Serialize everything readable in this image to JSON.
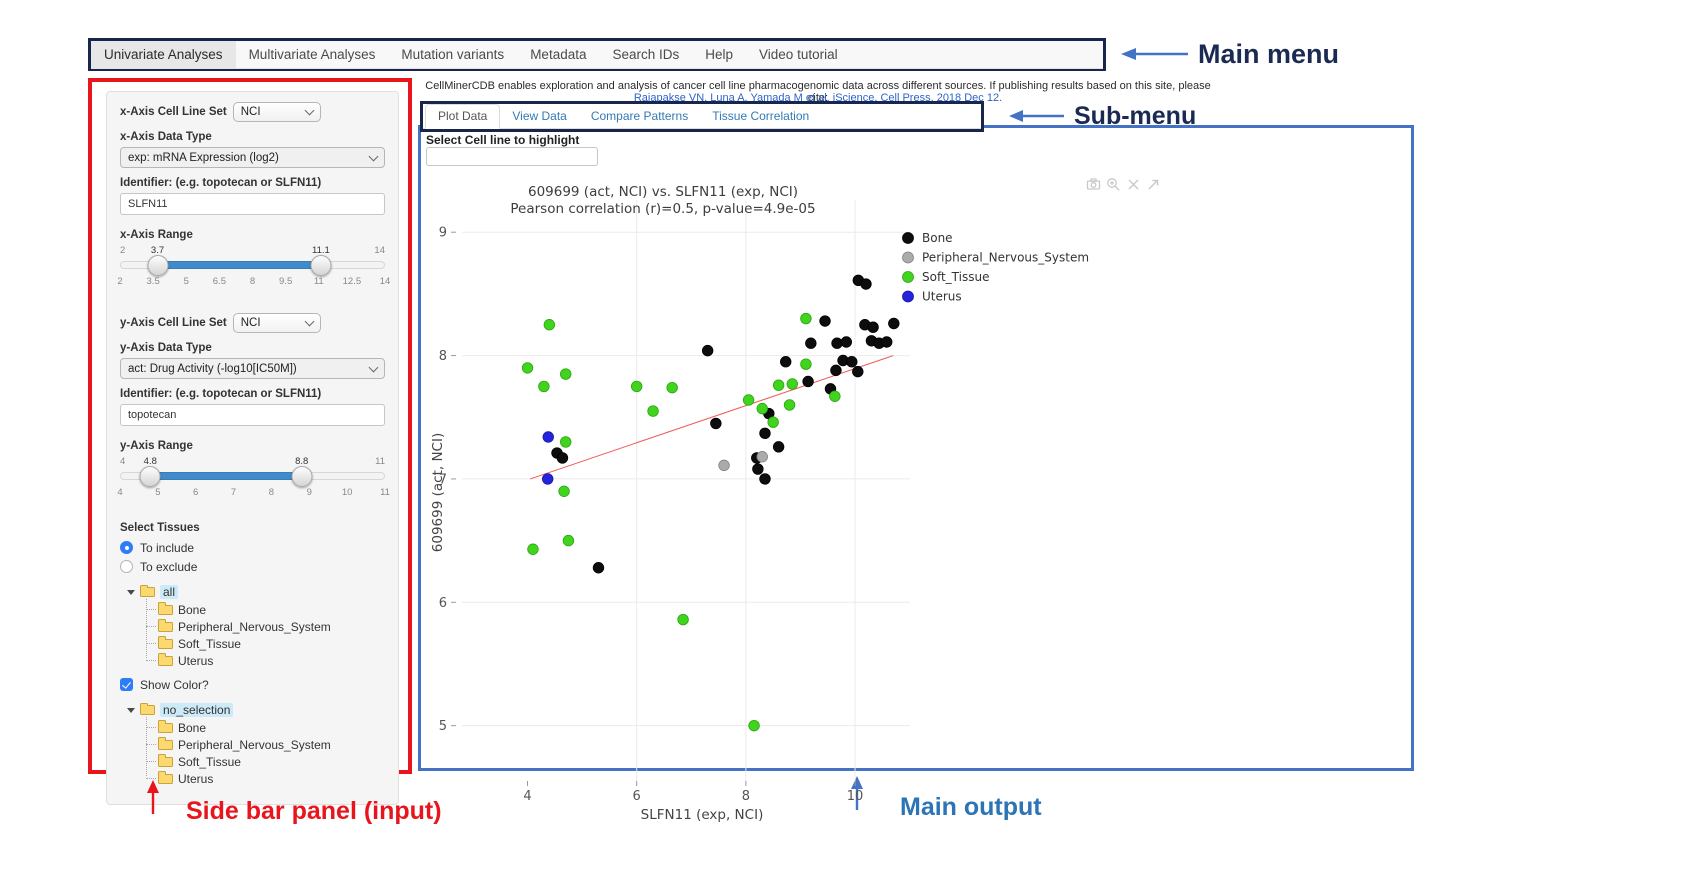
{
  "annotations": {
    "main_menu": "Main menu",
    "sub_menu": "Sub-menu",
    "sidebar": "Side bar panel (input)",
    "main_output": "Main output"
  },
  "main_menu": {
    "items": [
      "Univariate Analyses",
      "Multivariate Analyses",
      "Mutation variants",
      "Metadata",
      "Search IDs",
      "Help",
      "Video tutorial"
    ],
    "active": "Univariate Analyses"
  },
  "header": {
    "description": "CellMinerCDB enables exploration and analysis of cancer cell line pharmacogenomic data across different sources. If publishing results based on this site, please cite:",
    "citation": "Rajapakse VN, Luna A, Yamada M et al. iScience, Cell Press, 2018 Dec 12."
  },
  "sub_menu": {
    "tabs": [
      "Plot Data",
      "View Data",
      "Compare Patterns",
      "Tissue Correlation"
    ],
    "active": "Plot Data"
  },
  "sidebar": {
    "x_axis": {
      "cell_line_set_label": "x-Axis Cell Line Set",
      "cell_line_set_value": "NCI",
      "data_type_label": "x-Axis Data Type",
      "data_type_value": "exp: mRNA Expression (log2)",
      "identifier_label": "Identifier: (e.g. topotecan or SLFN11)",
      "identifier_value": "SLFN11",
      "range_label": "x-Axis Range",
      "range": {
        "min": 2,
        "max": 14,
        "from": 3.7,
        "to": 11.1,
        "ticks": [
          "2",
          "3.5",
          "5",
          "6.5",
          "8",
          "9.5",
          "11",
          "12.5",
          "14"
        ]
      }
    },
    "y_axis": {
      "cell_line_set_label": "y-Axis Cell Line Set",
      "cell_line_set_value": "NCI",
      "data_type_label": "y-Axis Data Type",
      "data_type_value": "act: Drug Activity (-log10[IC50M])",
      "identifier_label": "Identifier: (e.g. topotecan or SLFN11)",
      "identifier_value": "topotecan",
      "range_label": "y-Axis Range",
      "range": {
        "min": 4,
        "max": 11,
        "from": 4.8,
        "to": 8.8,
        "ticks": [
          "4",
          "5",
          "6",
          "7",
          "8",
          "9",
          "10",
          "11"
        ]
      }
    },
    "tissues": {
      "label": "Select Tissues",
      "include_option": "To include",
      "exclude_option": "To exclude",
      "include_selected": true,
      "tree_root": "all",
      "tree_items": [
        "Bone",
        "Peripheral_Nervous_System",
        "Soft_Tissue",
        "Uterus"
      ],
      "show_color_label": "Show Color?",
      "show_color_checked": true,
      "color_tree_root": "no_selection",
      "color_tree_items": [
        "Bone",
        "Peripheral_Nervous_System",
        "Soft_Tissue",
        "Uterus"
      ]
    }
  },
  "main_output": {
    "highlight_label": "Select Cell line to highlight",
    "highlight_value": ""
  },
  "chart_data": {
    "type": "scatter",
    "title_line1": "609699 (act, NCI) vs. SLFN11 (exp, NCI)",
    "title_line2": "Pearson correlation (r)=0.5, p-value=4.9e-05",
    "xlabel": "SLFN11 (exp, NCI)",
    "ylabel": "609699 (act, NCI)",
    "x_range": [
      2.8,
      10.86
    ],
    "y_range": [
      4.6,
      9.18
    ],
    "x_ticks": [
      4,
      6,
      8,
      10
    ],
    "x_grid_ticks": [
      6,
      8,
      10
    ],
    "y_ticks": [
      5,
      6,
      7,
      8,
      9
    ],
    "grid": true,
    "legend_position": "right",
    "trend_line": {
      "x1": 4.05,
      "y1": 7.0,
      "x2": 10.7,
      "y2": 8.0,
      "color": "#ef5b5b"
    },
    "series": [
      {
        "name": "Bone",
        "color": "#0d0d0d",
        "stroke": "#000000",
        "points": [
          [
            7.3,
            8.04
          ],
          [
            10.06,
            8.61
          ],
          [
            10.2,
            8.58
          ],
          [
            9.45,
            8.28
          ],
          [
            10.18,
            8.25
          ],
          [
            10.33,
            8.23
          ],
          [
            10.71,
            8.26
          ],
          [
            9.19,
            8.1
          ],
          [
            9.67,
            8.1
          ],
          [
            9.84,
            8.11
          ],
          [
            10.3,
            8.12
          ],
          [
            10.44,
            8.1
          ],
          [
            10.58,
            8.11
          ],
          [
            8.73,
            7.95
          ],
          [
            9.78,
            7.96
          ],
          [
            9.94,
            7.95
          ],
          [
            9.65,
            7.88
          ],
          [
            10.05,
            7.87
          ],
          [
            9.14,
            7.79
          ],
          [
            9.55,
            7.73
          ],
          [
            8.42,
            7.53
          ],
          [
            7.45,
            7.45
          ],
          [
            8.35,
            7.37
          ],
          [
            8.6,
            7.26
          ],
          [
            4.54,
            7.21
          ],
          [
            4.64,
            7.17
          ],
          [
            8.2,
            7.17
          ],
          [
            8.22,
            7.08
          ],
          [
            8.35,
            7.0
          ],
          [
            5.3,
            6.28
          ]
        ]
      },
      {
        "name": "Peripheral_Nervous_System",
        "color": "#ababab",
        "stroke": "#828282",
        "points": [
          [
            7.6,
            7.11
          ],
          [
            8.3,
            7.18
          ]
        ]
      },
      {
        "name": "Soft_Tissue",
        "color": "#41d41f",
        "stroke": "#2ba50e",
        "points": [
          [
            4.0,
            7.9
          ],
          [
            4.4,
            8.25
          ],
          [
            4.3,
            7.75
          ],
          [
            4.7,
            7.85
          ],
          [
            4.7,
            7.3
          ],
          [
            4.67,
            6.9
          ],
          [
            4.75,
            6.5
          ],
          [
            4.1,
            6.43
          ],
          [
            6.0,
            7.75
          ],
          [
            6.65,
            7.74
          ],
          [
            6.3,
            7.55
          ],
          [
            6.85,
            5.86
          ],
          [
            8.05,
            7.64
          ],
          [
            8.3,
            7.57
          ],
          [
            8.6,
            7.76
          ],
          [
            8.85,
            7.77
          ],
          [
            8.8,
            7.6
          ],
          [
            8.5,
            7.46
          ],
          [
            9.1,
            7.93
          ],
          [
            9.1,
            8.3
          ],
          [
            9.63,
            7.67
          ],
          [
            8.15,
            5.0
          ]
        ]
      },
      {
        "name": "Uterus",
        "color": "#2424dd",
        "stroke": "#1818a8",
        "points": [
          [
            4.38,
            7.34
          ],
          [
            4.37,
            7.0
          ]
        ]
      }
    ]
  }
}
